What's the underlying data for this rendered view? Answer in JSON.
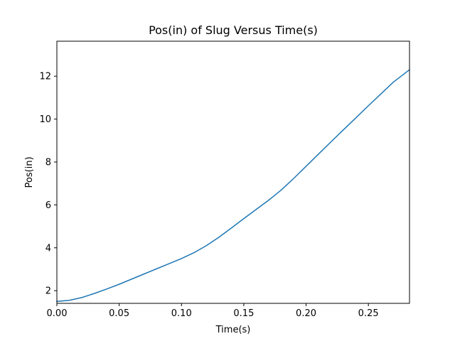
{
  "chart_data": {
    "type": "line",
    "title": "Pos(in) of Slug Versus Time(s)",
    "xlabel": "Time(s)",
    "ylabel": "Pos(in)",
    "xlim": [
      0,
      0.283
    ],
    "ylim": [
      1.41,
      13.63
    ],
    "xticks": [
      0.0,
      0.05,
      0.1,
      0.15,
      0.2,
      0.25
    ],
    "xtick_labels": [
      "0.00",
      "0.05",
      "0.10",
      "0.15",
      "0.20",
      "0.25"
    ],
    "yticks": [
      2,
      4,
      6,
      8,
      10,
      12
    ],
    "ytick_labels": [
      "2",
      "4",
      "6",
      "8",
      "10",
      "12"
    ],
    "grid": false,
    "series": [
      {
        "color": "#1f77b4",
        "x": [
          0.0,
          0.01,
          0.02,
          0.03,
          0.04,
          0.05,
          0.06,
          0.07,
          0.08,
          0.09,
          0.1,
          0.11,
          0.12,
          0.13,
          0.14,
          0.15,
          0.16,
          0.17,
          0.18,
          0.19,
          0.2,
          0.21,
          0.22,
          0.23,
          0.24,
          0.25,
          0.26,
          0.27,
          0.283
        ],
        "y": [
          1.5,
          1.55,
          1.68,
          1.87,
          2.08,
          2.3,
          2.54,
          2.78,
          3.02,
          3.26,
          3.5,
          3.77,
          4.1,
          4.49,
          4.92,
          5.36,
          5.79,
          6.22,
          6.69,
          7.23,
          7.8,
          8.37,
          8.94,
          9.5,
          10.06,
          10.62,
          11.17,
          11.72,
          12.3
        ]
      }
    ]
  }
}
